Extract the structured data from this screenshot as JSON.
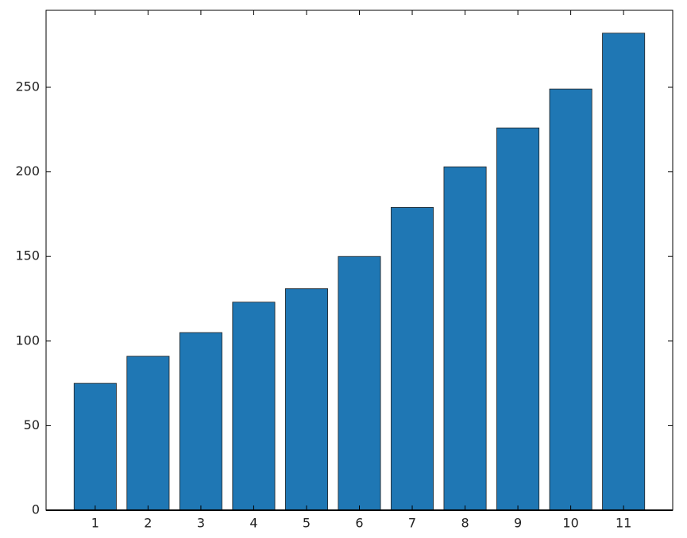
{
  "chart_data": {
    "type": "bar",
    "x": [
      1,
      2,
      3,
      4,
      5,
      6,
      7,
      8,
      9,
      10,
      11
    ],
    "values": [
      75,
      91,
      105,
      123,
      131,
      150,
      179,
      203,
      226,
      249,
      282
    ],
    "color": "#1f77b4",
    "xlim": [
      0.07,
      11.93
    ],
    "xticks": [
      1,
      2,
      3,
      4,
      5,
      6,
      7,
      8,
      9,
      10,
      11
    ],
    "ylim": [
      0,
      295.5
    ],
    "yticks": [
      0,
      50,
      100,
      150,
      200,
      250
    ],
    "grid": false
  }
}
